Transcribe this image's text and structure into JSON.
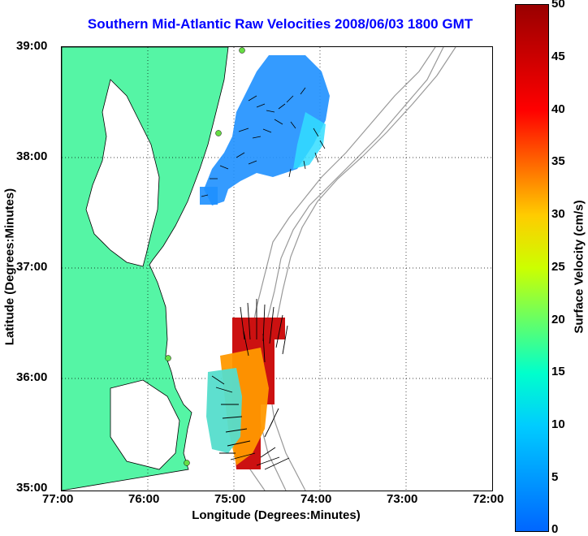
{
  "title": "Southern Mid-Atlantic Raw Velocities 2008/06/03 1800 GMT",
  "axes": {
    "xlabel": "Longitude (Degrees:Minutes)",
    "ylabel": "Latitude (Degrees:Minutes)",
    "xticks": [
      "77:00",
      "76:00",
      "75:00",
      "74:00",
      "73:00",
      "72:00"
    ],
    "yticks": [
      "39:00",
      "38:00",
      "37:00",
      "36:00",
      "35:00"
    ]
  },
  "colorbar": {
    "label": "Surface Velocity (cm/s)",
    "ticks": [
      "50",
      "45",
      "40",
      "35",
      "30",
      "25",
      "20",
      "15",
      "10",
      "5",
      "0"
    ]
  },
  "colors": {
    "land": "#55f5a5",
    "title": "#0000ff",
    "bathymetry": "#999999"
  }
}
